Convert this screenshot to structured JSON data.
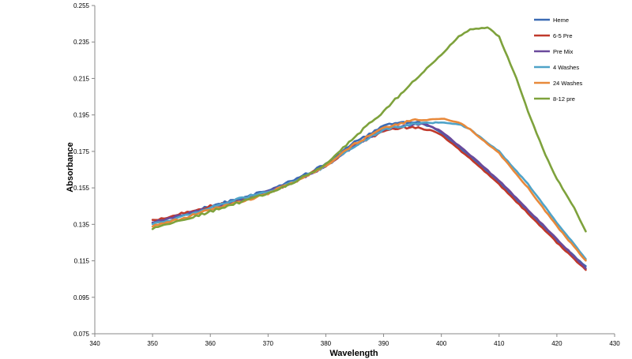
{
  "chart_data": {
    "type": "line",
    "title": "",
    "xlabel": "Wavelength",
    "ylabel": "Absorbance",
    "xlim": [
      340,
      430
    ],
    "ylim": [
      0.075,
      0.255
    ],
    "xticks": [
      340,
      350,
      360,
      370,
      380,
      390,
      400,
      410,
      420,
      430
    ],
    "yticks": [
      0.075,
      0.095,
      0.115,
      0.135,
      0.155,
      0.175,
      0.195,
      0.215,
      0.235,
      0.255
    ],
    "ytick_labels": [
      "0.075",
      "0.095",
      "0.115",
      "0.135",
      "0.155",
      "0.175",
      "0.195",
      "0.215",
      "0.235",
      "0.255"
    ],
    "grid": false,
    "legend_position": "top-right",
    "series": [
      {
        "name": "Heme",
        "color": "#3B6BB4",
        "points": [
          [
            350,
            0.136
          ],
          [
            355,
            0.14
          ],
          [
            360,
            0.145
          ],
          [
            365,
            0.149
          ],
          [
            370,
            0.154
          ],
          [
            375,
            0.16
          ],
          [
            380,
            0.168
          ],
          [
            385,
            0.18
          ],
          [
            390,
            0.189
          ],
          [
            393,
            0.191
          ],
          [
            396,
            0.191
          ],
          [
            398,
            0.189
          ],
          [
            400,
            0.185
          ],
          [
            405,
            0.172
          ],
          [
            410,
            0.158
          ],
          [
            415,
            0.142
          ],
          [
            420,
            0.126
          ],
          [
            425,
            0.112
          ]
        ]
      },
      {
        "name": "6-5 Pre",
        "color": "#C0392B",
        "points": [
          [
            350,
            0.137
          ],
          [
            355,
            0.141
          ],
          [
            360,
            0.145
          ],
          [
            365,
            0.148
          ],
          [
            370,
            0.152
          ],
          [
            375,
            0.159
          ],
          [
            380,
            0.167
          ],
          [
            385,
            0.178
          ],
          [
            390,
            0.186
          ],
          [
            393,
            0.188
          ],
          [
            396,
            0.188
          ],
          [
            398,
            0.187
          ],
          [
            400,
            0.184
          ],
          [
            405,
            0.171
          ],
          [
            410,
            0.157
          ],
          [
            415,
            0.141
          ],
          [
            420,
            0.125
          ],
          [
            425,
            0.11
          ]
        ]
      },
      {
        "name": "Pre Mix",
        "color": "#6A4A9C",
        "points": [
          [
            350,
            0.136
          ],
          [
            355,
            0.14
          ],
          [
            360,
            0.144
          ],
          [
            365,
            0.148
          ],
          [
            370,
            0.153
          ],
          [
            375,
            0.159
          ],
          [
            380,
            0.167
          ],
          [
            385,
            0.178
          ],
          [
            390,
            0.187
          ],
          [
            393,
            0.189
          ],
          [
            396,
            0.19
          ],
          [
            398,
            0.189
          ],
          [
            400,
            0.186
          ],
          [
            405,
            0.173
          ],
          [
            410,
            0.159
          ],
          [
            415,
            0.143
          ],
          [
            420,
            0.127
          ],
          [
            425,
            0.111
          ]
        ]
      },
      {
        "name": "4 Washes",
        "color": "#4FA3C8",
        "points": [
          [
            350,
            0.135
          ],
          [
            355,
            0.139
          ],
          [
            360,
            0.144
          ],
          [
            365,
            0.149
          ],
          [
            370,
            0.153
          ],
          [
            375,
            0.159
          ],
          [
            380,
            0.167
          ],
          [
            385,
            0.178
          ],
          [
            390,
            0.187
          ],
          [
            395,
            0.19
          ],
          [
            400,
            0.191
          ],
          [
            403,
            0.19
          ],
          [
            405,
            0.187
          ],
          [
            410,
            0.175
          ],
          [
            415,
            0.157
          ],
          [
            420,
            0.136
          ],
          [
            425,
            0.116
          ]
        ]
      },
      {
        "name": "24 Washes",
        "color": "#E8893B",
        "points": [
          [
            350,
            0.134
          ],
          [
            355,
            0.138
          ],
          [
            360,
            0.143
          ],
          [
            365,
            0.147
          ],
          [
            370,
            0.152
          ],
          [
            375,
            0.159
          ],
          [
            380,
            0.167
          ],
          [
            385,
            0.179
          ],
          [
            390,
            0.188
          ],
          [
            395,
            0.192
          ],
          [
            400,
            0.193
          ],
          [
            403,
            0.191
          ],
          [
            405,
            0.187
          ],
          [
            410,
            0.174
          ],
          [
            415,
            0.155
          ],
          [
            420,
            0.134
          ],
          [
            425,
            0.115
          ]
        ]
      },
      {
        "name": "8-12 pre",
        "color": "#7EA23C",
        "points": [
          [
            350,
            0.133
          ],
          [
            355,
            0.137
          ],
          [
            360,
            0.142
          ],
          [
            365,
            0.147
          ],
          [
            370,
            0.152
          ],
          [
            375,
            0.159
          ],
          [
            380,
            0.168
          ],
          [
            385,
            0.183
          ],
          [
            390,
            0.197
          ],
          [
            395,
            0.213
          ],
          [
            400,
            0.228
          ],
          [
            403,
            0.238
          ],
          [
            405,
            0.242
          ],
          [
            408,
            0.243
          ],
          [
            410,
            0.238
          ],
          [
            413,
            0.215
          ],
          [
            415,
            0.197
          ],
          [
            418,
            0.173
          ],
          [
            420,
            0.16
          ],
          [
            423,
            0.144
          ],
          [
            425,
            0.131
          ]
        ]
      }
    ]
  }
}
